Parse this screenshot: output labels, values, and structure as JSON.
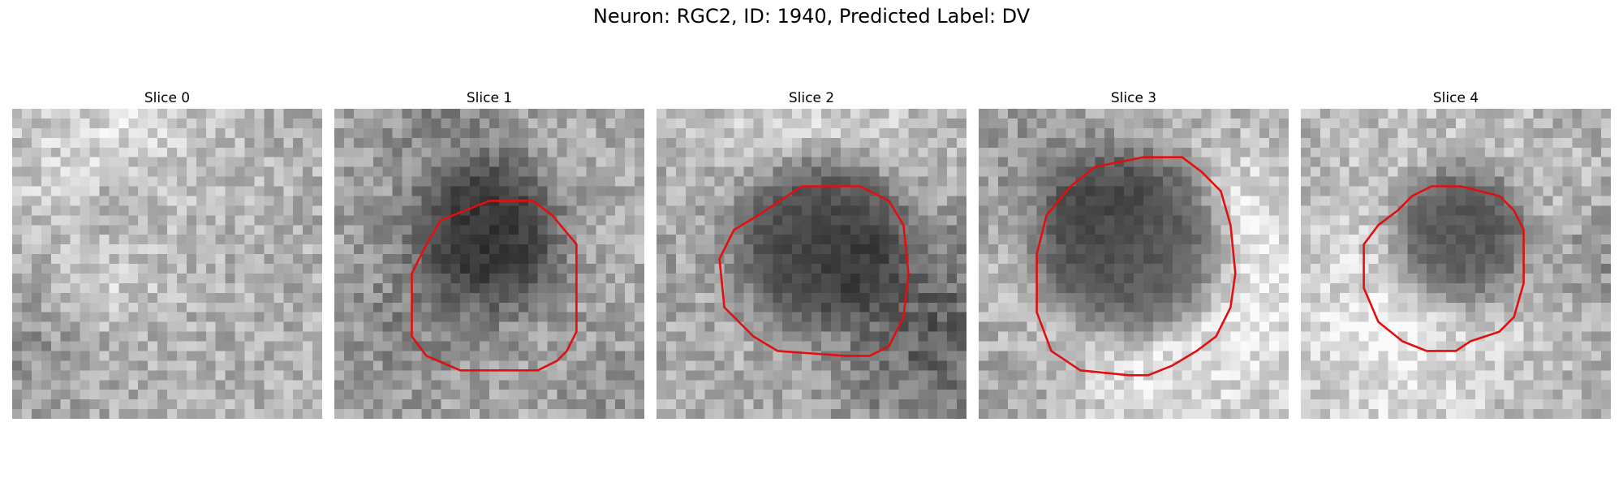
{
  "figure": {
    "title": "Neuron: RGC2, ID: 1940, Predicted Label: DV"
  },
  "panels": [
    {
      "title": "Slice 0",
      "has_outline": false
    },
    {
      "title": "Slice 1",
      "has_outline": true
    },
    {
      "title": "Slice 2",
      "has_outline": true
    },
    {
      "title": "Slice 3",
      "has_outline": true
    },
    {
      "title": "Slice 4",
      "has_outline": true
    }
  ],
  "colors": {
    "outline": "#e01010",
    "colormap": "gray"
  }
}
